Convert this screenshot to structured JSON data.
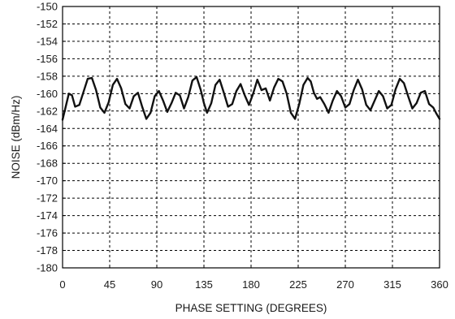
{
  "chart_data": {
    "type": "line",
    "title": "",
    "xlabel": "PHASE SETTING (DEGREES)",
    "ylabel": "NOISE (dBm/Hz)",
    "xlim": [
      0,
      360
    ],
    "ylim": [
      -180,
      -150
    ],
    "xticks": [
      0,
      45,
      90,
      135,
      180,
      225,
      270,
      315,
      360
    ],
    "yticks": [
      -150,
      -152,
      -154,
      -156,
      -158,
      -160,
      -162,
      -164,
      -166,
      -168,
      -170,
      -172,
      -174,
      -176,
      -178,
      -180
    ],
    "grid": true,
    "legend": "none",
    "series": [
      {
        "color": "#111111",
        "x": [
          0,
          3,
          6,
          9,
          12,
          16,
          20,
          24,
          28,
          32,
          36,
          40,
          44,
          48,
          52,
          56,
          60,
          64,
          68,
          72,
          76,
          80,
          84,
          88,
          92,
          96,
          100,
          104,
          108,
          112,
          116,
          120,
          124,
          128,
          132,
          135,
          138,
          142,
          146,
          150,
          154,
          158,
          162,
          166,
          170,
          174,
          178,
          182,
          186,
          190,
          194,
          198,
          202,
          206,
          210,
          214,
          218,
          222,
          226,
          230,
          234,
          237,
          240,
          243,
          246,
          250,
          254,
          258,
          262,
          266,
          270,
          274,
          278,
          282,
          286,
          290,
          294,
          298,
          302,
          306,
          310,
          314,
          318,
          322,
          326,
          330,
          334,
          338,
          342,
          346,
          350,
          354,
          357,
          360
        ],
        "y": [
          -163,
          -161.5,
          -160,
          -160.2,
          -161.5,
          -161.3,
          -159.8,
          -158.3,
          -158.2,
          -159.6,
          -161.6,
          -162.2,
          -161,
          -159,
          -158.3,
          -159.4,
          -161.2,
          -161.7,
          -160.3,
          -159.9,
          -161.5,
          -162.9,
          -162.2,
          -160.3,
          -159.7,
          -160.8,
          -162.1,
          -161.1,
          -159.9,
          -160.2,
          -161.7,
          -160.4,
          -158.5,
          -158.1,
          -159.6,
          -161.1,
          -162.2,
          -161.1,
          -159,
          -158.4,
          -159.9,
          -161.5,
          -161.2,
          -159.7,
          -158.9,
          -160.2,
          -161.3,
          -160,
          -158.4,
          -159.6,
          -159.4,
          -160.8,
          -159.3,
          -158.3,
          -158.6,
          -160,
          -162.2,
          -162.9,
          -161.2,
          -159,
          -158.2,
          -158.6,
          -159.9,
          -160.6,
          -160.4,
          -161.2,
          -162.2,
          -160.8,
          -159.7,
          -160.3,
          -161.6,
          -161.2,
          -159.6,
          -158.4,
          -159.5,
          -161.3,
          -161.9,
          -160.8,
          -159.7,
          -160.3,
          -161.7,
          -161.3,
          -159.5,
          -158.3,
          -158.8,
          -160.3,
          -161.7,
          -161.1,
          -159.9,
          -159.7,
          -161.2,
          -161.6,
          -162.3,
          -162.9
        ]
      }
    ]
  }
}
